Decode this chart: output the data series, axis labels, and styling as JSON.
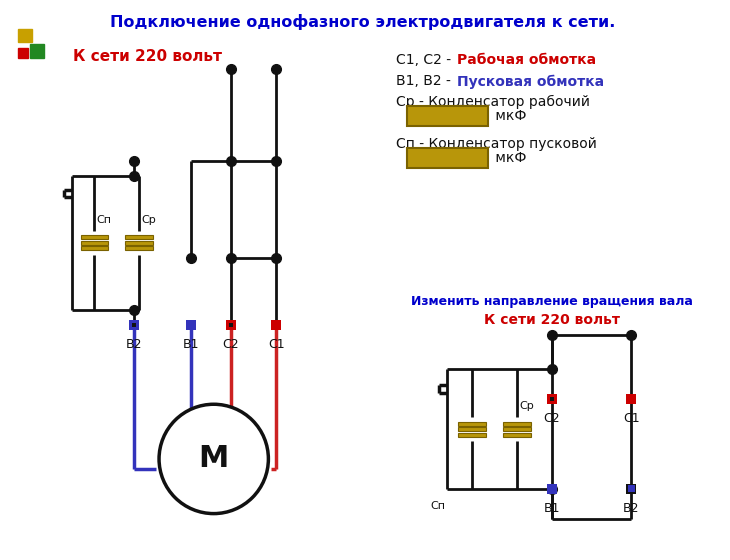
{
  "title": "Подключение однофазного электродвигателя к сети.",
  "title_color": "#0000cc",
  "title_fontsize": 11.5,
  "bg_color": "#ffffff",
  "net_label": "К сети 220 вольт",
  "net_label_color": "#cc0000",
  "change_text": "Изменить направление вращения вала",
  "change_color": "#0000cc",
  "motor_label": "М",
  "blue_color": "#3333bb",
  "red_color": "#cc2222",
  "black_color": "#111111",
  "cap_color": "#b8960a",
  "cap_border": "#7a6200",
  "square_red": "#cc0000",
  "square_blue": "#3333bb",
  "square_dark": "#111111",
  "yellow_sq_color": "#c8a000",
  "green_sq_color": "#228822",
  "legend_red": "#cc0000",
  "legend_blue": "#3333bb"
}
